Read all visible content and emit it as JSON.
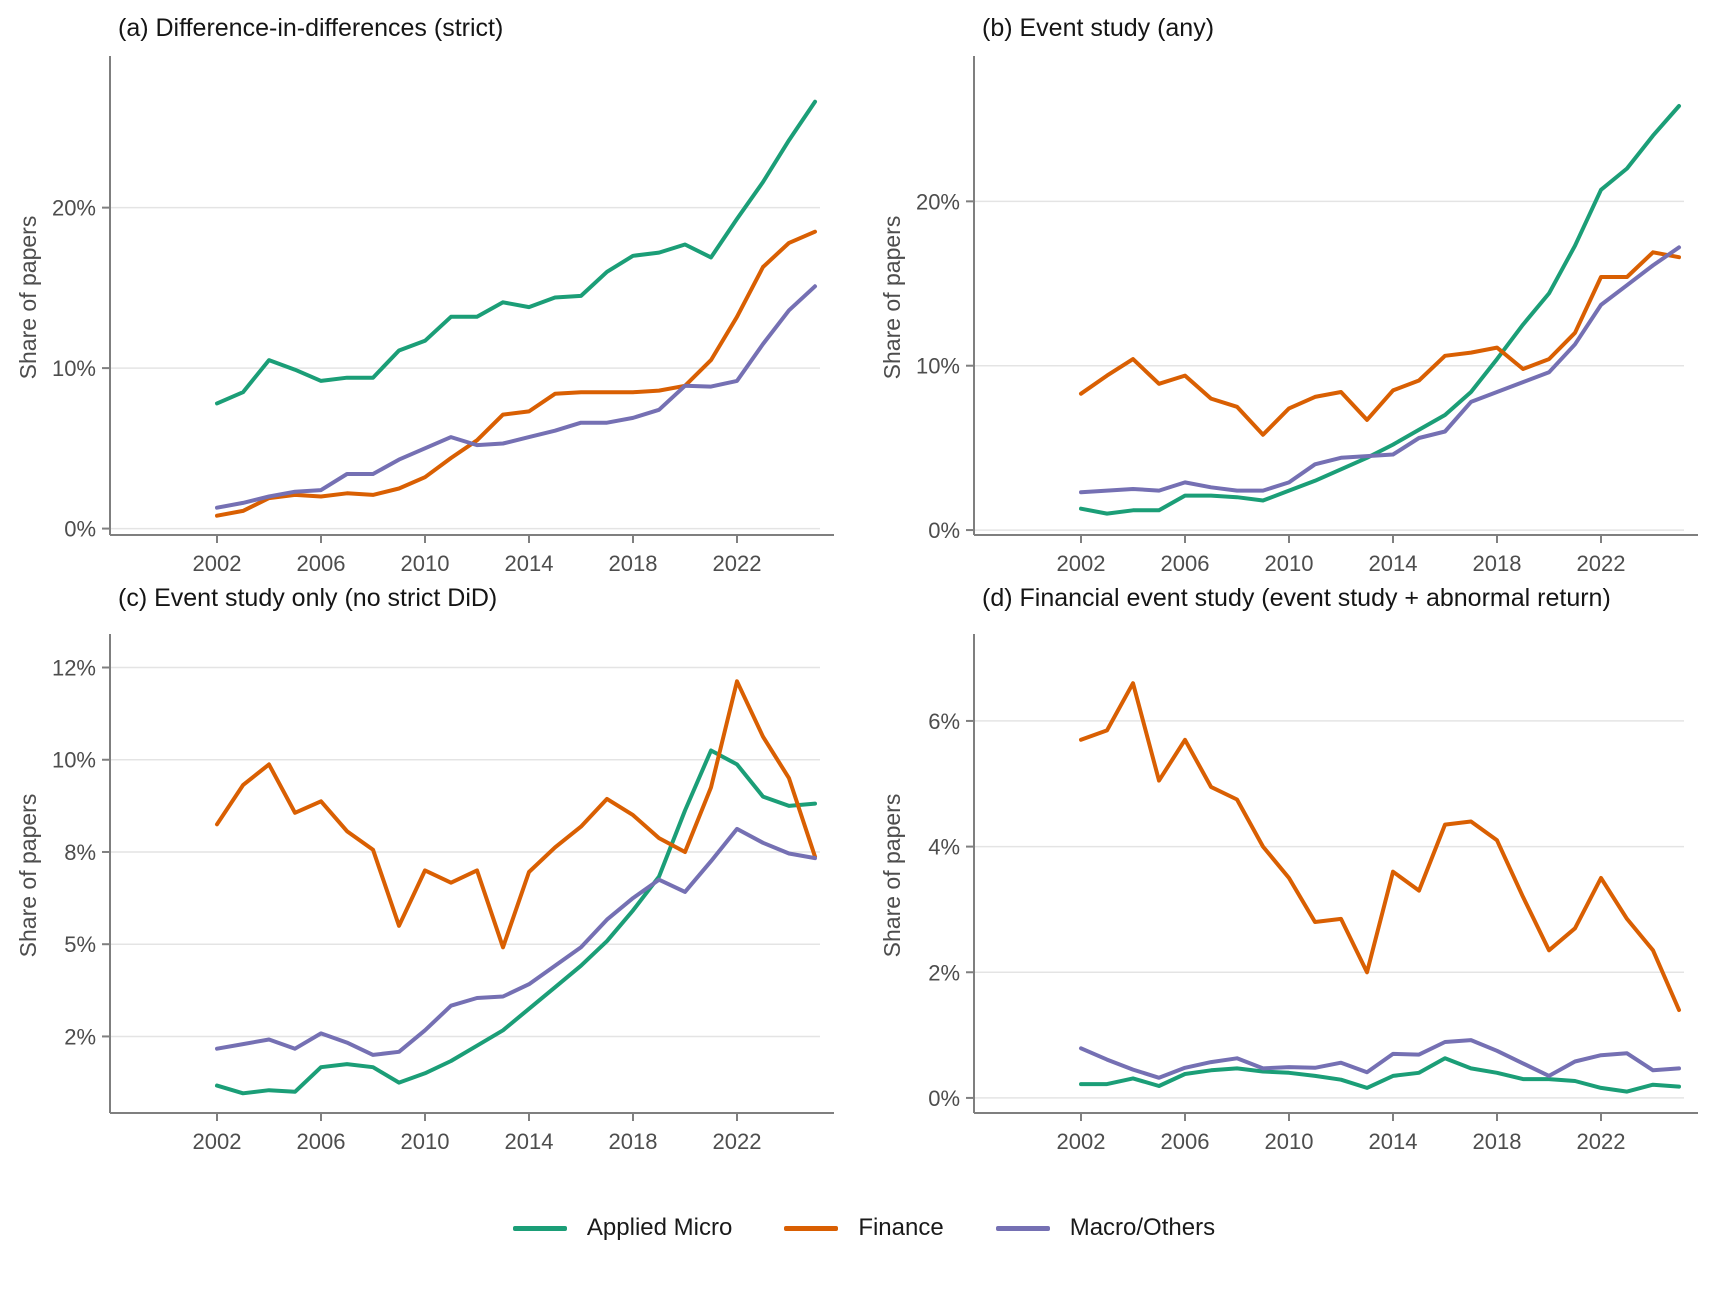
{
  "figure": {
    "kind": "2x2 small-multiple line charts",
    "background": "#ffffff",
    "axis_color": "#7f7f7f",
    "grid_color": "#e4e4e4",
    "tick_text_color": "#4d4d4d",
    "title_text_color": "#151515"
  },
  "legend": {
    "items": [
      {
        "label": "Applied Micro",
        "color": "#1b9e77"
      },
      {
        "label": "Finance",
        "color": "#d95f02"
      },
      {
        "label": "Macro/Others",
        "color": "#7570b3"
      }
    ]
  },
  "chart_data": [
    {
      "id": "a",
      "type": "line",
      "title": "(a) Difference-in-differences (strict)",
      "ylabel": "Share of papers",
      "x": [
        2002,
        2003,
        2004,
        2005,
        2006,
        2007,
        2008,
        2009,
        2010,
        2011,
        2012,
        2013,
        2014,
        2015,
        2016,
        2017,
        2018,
        2019,
        2020,
        2021,
        2022,
        2023,
        2024,
        2025
      ],
      "x_ticks": [
        2002,
        2006,
        2010,
        2014,
        2018,
        2022
      ],
      "y_ticks": [
        0,
        10,
        20
      ],
      "y_tick_labels": [
        "0%",
        "10%",
        "20%"
      ],
      "y_index_range": [
        -0.04,
        2.92
      ],
      "grid": true,
      "series": [
        {
          "name": "Applied Micro",
          "color": "#1b9e77",
          "values": [
            7.8,
            8.5,
            10.5,
            9.9,
            9.2,
            9.4,
            9.4,
            11.1,
            11.7,
            13.2,
            13.2,
            14.1,
            13.8,
            14.4,
            14.5,
            16.0,
            17.0,
            17.2,
            17.7,
            16.9,
            19.3,
            21.6,
            24.2,
            26.6
          ]
        },
        {
          "name": "Finance",
          "color": "#d95f02",
          "values": [
            0.8,
            1.1,
            1.9,
            2.1,
            2.0,
            2.2,
            2.1,
            2.5,
            3.2,
            4.4,
            5.5,
            7.1,
            7.3,
            8.4,
            8.5,
            8.5,
            8.5,
            8.6,
            8.9,
            10.5,
            13.2,
            16.3,
            17.8,
            18.5
          ]
        },
        {
          "name": "Macro/Others",
          "color": "#7570b3",
          "values": [
            1.3,
            1.6,
            2.0,
            2.3,
            2.4,
            3.4,
            3.4,
            4.3,
            5.0,
            5.7,
            5.2,
            5.3,
            5.7,
            6.1,
            6.6,
            6.6,
            6.9,
            7.4,
            8.9,
            8.85,
            9.2,
            11.5,
            13.6,
            15.1
          ]
        }
      ]
    },
    {
      "id": "b",
      "type": "line",
      "title": "(b) Event study (any)",
      "ylabel": "Share of papers",
      "x": [
        2002,
        2003,
        2004,
        2005,
        2006,
        2007,
        2008,
        2009,
        2010,
        2011,
        2012,
        2013,
        2014,
        2015,
        2016,
        2017,
        2018,
        2019,
        2020,
        2021,
        2022,
        2023,
        2024,
        2025
      ],
      "x_ticks": [
        2002,
        2006,
        2010,
        2014,
        2018,
        2022
      ],
      "y_ticks": [
        0,
        10,
        20
      ],
      "y_tick_labels": [
        "0%",
        "10%",
        "20%"
      ],
      "y_index_range": [
        -0.03,
        2.86
      ],
      "grid": true,
      "series": [
        {
          "name": "Applied Micro",
          "color": "#1b9e77",
          "values": [
            1.3,
            1.0,
            1.2,
            1.2,
            2.1,
            2.1,
            2.0,
            1.8,
            2.4,
            3.0,
            3.7,
            4.4,
            5.2,
            6.1,
            7.0,
            8.4,
            10.4,
            12.5,
            14.4,
            17.3,
            20.7,
            22.0,
            24.0,
            25.8
          ]
        },
        {
          "name": "Finance",
          "color": "#d95f02",
          "values": [
            8.3,
            9.4,
            10.4,
            8.9,
            9.4,
            8.0,
            7.5,
            5.8,
            7.4,
            8.1,
            8.4,
            6.7,
            8.5,
            9.1,
            10.6,
            10.8,
            11.1,
            9.8,
            10.4,
            12.0,
            15.4,
            15.4,
            16.9,
            16.6
          ]
        },
        {
          "name": "Macro/Others",
          "color": "#7570b3",
          "values": [
            2.3,
            2.4,
            2.5,
            2.4,
            2.9,
            2.6,
            2.4,
            2.4,
            2.9,
            4.0,
            4.4,
            4.5,
            4.6,
            5.6,
            6.0,
            7.8,
            8.4,
            9.0,
            9.6,
            11.3,
            13.7,
            14.9,
            16.1,
            17.2
          ]
        }
      ]
    },
    {
      "id": "c",
      "type": "line",
      "title": "(c) Event study only (no strict DiD)",
      "ylabel": "Share of papers",
      "x": [
        2002,
        2003,
        2004,
        2005,
        2006,
        2007,
        2008,
        2009,
        2010,
        2011,
        2012,
        2013,
        2014,
        2015,
        2016,
        2017,
        2018,
        2019,
        2020,
        2021,
        2022,
        2023,
        2024,
        2025
      ],
      "x_ticks": [
        2002,
        2006,
        2010,
        2014,
        2018,
        2022
      ],
      "y_ticks": [
        2,
        5,
        8,
        10,
        12
      ],
      "y_tick_labels": [
        "2%",
        "5%",
        "8%",
        "10%",
        "12%"
      ],
      "y_index_range": [
        -0.83,
        4.32
      ],
      "grid": true,
      "note": "y tick values are evenly spaced on the axis despite unequal increments",
      "series": [
        {
          "name": "Applied Micro",
          "color": "#1b9e77",
          "values": [
            0.4,
            0.15,
            0.25,
            0.2,
            1.0,
            1.1,
            1.0,
            0.5,
            0.8,
            1.2,
            1.7,
            2.2,
            2.9,
            3.6,
            4.3,
            5.1,
            6.1,
            7.2,
            8.9,
            10.2,
            9.9,
            9.2,
            9.0,
            9.05
          ]
        },
        {
          "name": "Finance",
          "color": "#d95f02",
          "values": [
            8.6,
            9.45,
            9.9,
            8.85,
            9.1,
            8.45,
            8.05,
            5.6,
            7.4,
            7.0,
            7.4,
            4.9,
            7.35,
            8.1,
            8.55,
            9.15,
            8.8,
            8.3,
            8.0,
            9.4,
            11.7,
            10.5,
            9.6,
            7.85
          ]
        },
        {
          "name": "Macro/Others",
          "color": "#7570b3",
          "values": [
            1.6,
            1.75,
            1.9,
            1.6,
            2.1,
            1.8,
            1.4,
            1.5,
            2.2,
            3.0,
            3.25,
            3.3,
            3.7,
            4.3,
            4.9,
            5.8,
            6.5,
            7.1,
            6.7,
            7.7,
            8.5,
            8.2,
            7.95,
            7.8
          ]
        }
      ]
    },
    {
      "id": "d",
      "type": "line",
      "title": "(d) Financial event study (event study + abnormal return)",
      "ylabel": "Share of papers",
      "x": [
        2002,
        2003,
        2004,
        2005,
        2006,
        2007,
        2008,
        2009,
        2010,
        2011,
        2012,
        2013,
        2014,
        2015,
        2016,
        2017,
        2018,
        2019,
        2020,
        2021,
        2022,
        2023,
        2024,
        2025
      ],
      "x_ticks": [
        2002,
        2006,
        2010,
        2014,
        2018,
        2022
      ],
      "y_ticks": [
        0,
        2,
        4,
        6
      ],
      "y_tick_labels": [
        "0%",
        "2%",
        "4%",
        "6%"
      ],
      "y_index_range": [
        -0.12,
        3.66
      ],
      "grid": true,
      "series": [
        {
          "name": "Applied Micro",
          "color": "#1b9e77",
          "values": [
            0.22,
            0.22,
            0.31,
            0.19,
            0.38,
            0.44,
            0.47,
            0.42,
            0.4,
            0.35,
            0.29,
            0.16,
            0.35,
            0.4,
            0.63,
            0.47,
            0.4,
            0.3,
            0.3,
            0.27,
            0.16,
            0.1,
            0.21,
            0.18
          ]
        },
        {
          "name": "Finance",
          "color": "#d95f02",
          "values": [
            5.7,
            5.85,
            6.6,
            5.05,
            5.7,
            4.95,
            4.75,
            4.0,
            3.5,
            2.8,
            2.85,
            2.0,
            3.6,
            3.3,
            4.35,
            4.4,
            4.1,
            3.2,
            2.35,
            2.7,
            3.5,
            2.85,
            2.35,
            1.4
          ]
        },
        {
          "name": "Macro/Others",
          "color": "#7570b3",
          "values": [
            0.79,
            0.61,
            0.45,
            0.32,
            0.48,
            0.57,
            0.63,
            0.47,
            0.49,
            0.48,
            0.56,
            0.41,
            0.7,
            0.69,
            0.89,
            0.92,
            0.75,
            0.55,
            0.35,
            0.58,
            0.68,
            0.71,
            0.44,
            0.47
          ]
        }
      ]
    }
  ]
}
